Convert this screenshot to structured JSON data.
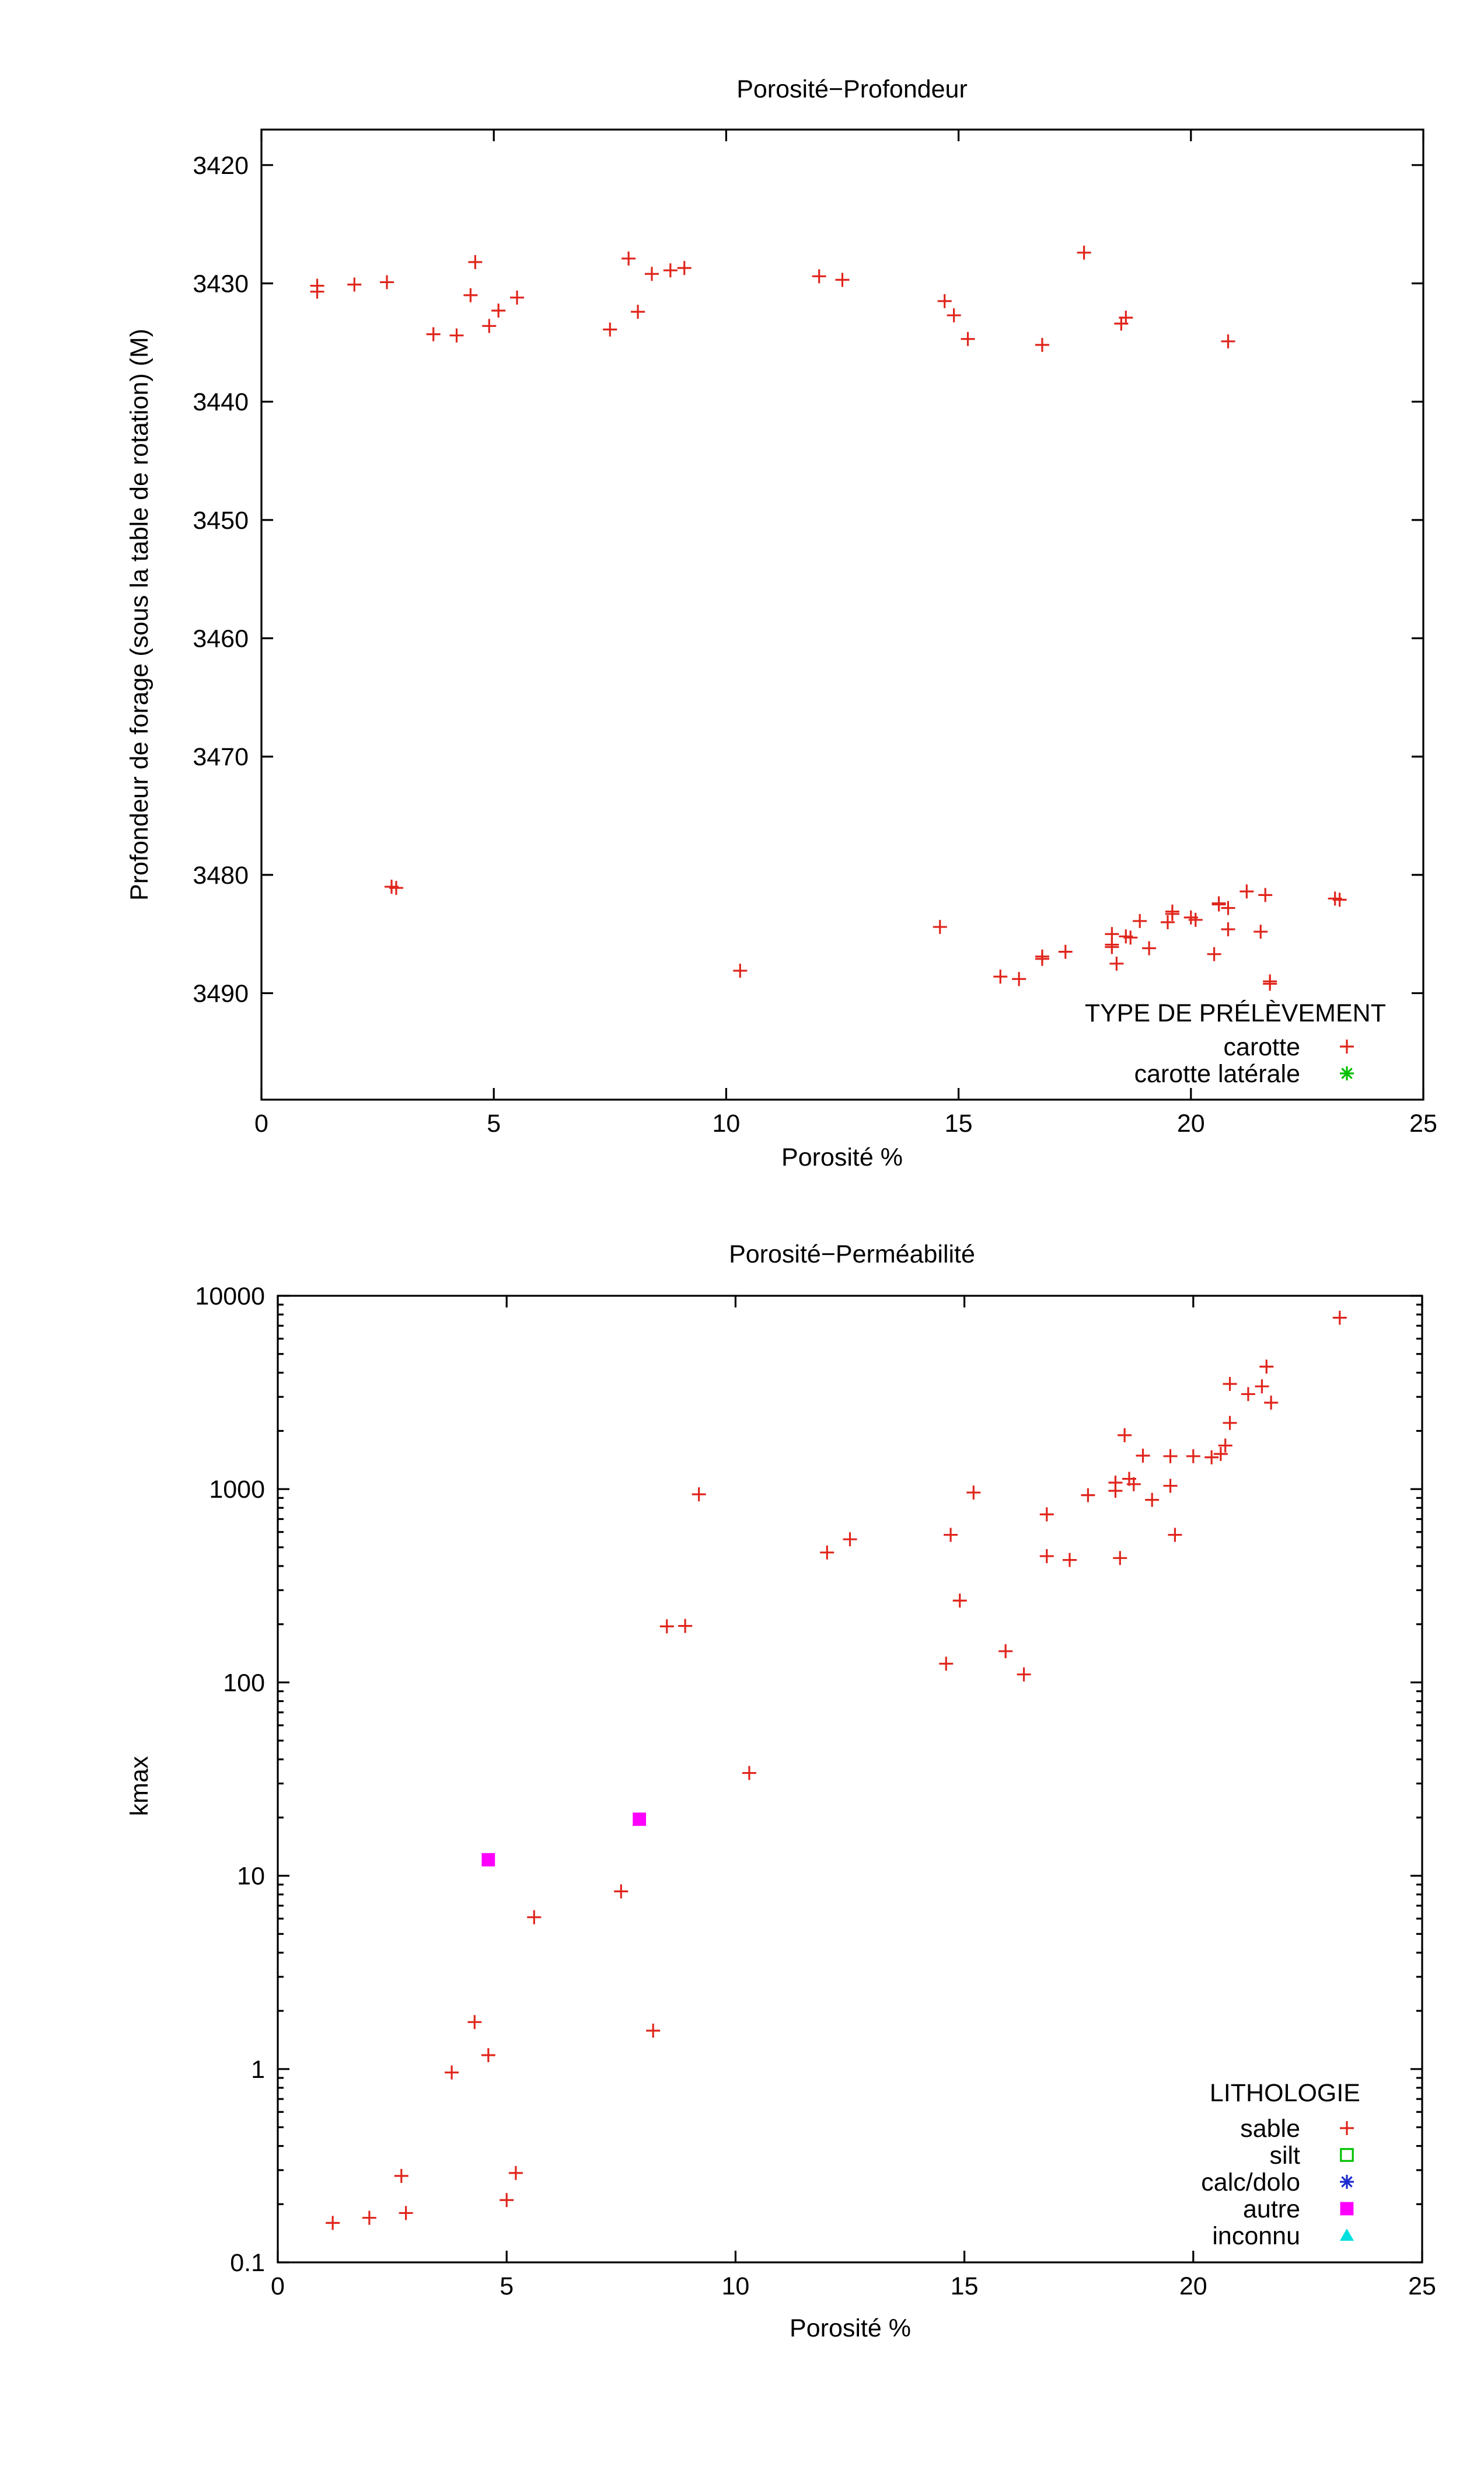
{
  "chart_data": [
    {
      "type": "scatter",
      "title": "Porosité−Profondeur",
      "xlabel": "Porosité %",
      "ylabel": "Profondeur de forage (sous la table de rotation) (M)",
      "xlim": [
        0,
        25
      ],
      "ylim": [
        3499,
        3417
      ],
      "y_reversed": true,
      "x_ticks": [
        "0",
        "5",
        "10",
        "15",
        "20",
        "25"
      ],
      "y_ticks": [
        "3420",
        "3430",
        "3440",
        "3450",
        "3460",
        "3470",
        "3480",
        "3490"
      ],
      "grid": false,
      "legend_position": "bottom-right",
      "legend_title": "TYPE DE PRÉLÈVEMENT",
      "series": [
        {
          "name": "carotte",
          "marker": "plus",
          "color": "#e0251b",
          "points": [
            [
              1.2,
              3430.2
            ],
            [
              1.2,
              3430.7
            ],
            [
              2.0,
              3430.1
            ],
            [
              2.7,
              3429.9
            ],
            [
              3.7,
              3434.3
            ],
            [
              4.2,
              3434.4
            ],
            [
              4.5,
              3431.0
            ],
            [
              4.6,
              3428.2
            ],
            [
              4.9,
              3433.6
            ],
            [
              5.1,
              3432.3
            ],
            [
              5.5,
              3431.2
            ],
            [
              7.5,
              3433.9
            ],
            [
              7.9,
              3427.9
            ],
            [
              8.1,
              3432.4
            ],
            [
              8.4,
              3429.2
            ],
            [
              8.8,
              3428.9
            ],
            [
              9.1,
              3428.7
            ],
            [
              12.0,
              3429.4
            ],
            [
              12.5,
              3429.7
            ],
            [
              14.7,
              3431.5
            ],
            [
              14.9,
              3432.7
            ],
            [
              15.2,
              3434.7
            ],
            [
              16.8,
              3435.2
            ],
            [
              17.7,
              3427.4
            ],
            [
              18.5,
              3433.4
            ],
            [
              18.6,
              3432.9
            ],
            [
              20.8,
              3434.9
            ],
            [
              2.8,
              3481.0
            ],
            [
              2.9,
              3481.1
            ],
            [
              10.3,
              3488.1
            ],
            [
              14.6,
              3484.4
            ],
            [
              15.9,
              3488.6
            ],
            [
              16.3,
              3488.8
            ],
            [
              16.8,
              3487.1
            ],
            [
              16.8,
              3486.9
            ],
            [
              17.3,
              3486.5
            ],
            [
              18.3,
              3485.0
            ],
            [
              18.3,
              3485.9
            ],
            [
              18.3,
              3486.1
            ],
            [
              18.4,
              3487.5
            ],
            [
              18.6,
              3485.2
            ],
            [
              18.7,
              3485.3
            ],
            [
              18.9,
              3483.9
            ],
            [
              19.1,
              3486.2
            ],
            [
              19.5,
              3484.0
            ],
            [
              19.6,
              3483.3
            ],
            [
              19.6,
              3483.1
            ],
            [
              20.0,
              3483.6
            ],
            [
              20.1,
              3483.8
            ],
            [
              20.5,
              3486.7
            ],
            [
              20.6,
              3482.4
            ],
            [
              20.6,
              3482.5
            ],
            [
              20.8,
              3482.8
            ],
            [
              20.8,
              3484.6
            ],
            [
              21.2,
              3481.4
            ],
            [
              21.5,
              3484.8
            ],
            [
              21.6,
              3481.7
            ],
            [
              21.7,
              3489.0
            ],
            [
              21.7,
              3489.2
            ],
            [
              23.1,
              3482.0
            ],
            [
              23.2,
              3482.1
            ]
          ]
        },
        {
          "name": "carotte latérale",
          "marker": "star",
          "color": "#00c000",
          "points": []
        }
      ]
    },
    {
      "type": "scatter",
      "title": "Porosité−Perméabilité",
      "xlabel": "Porosité %",
      "ylabel": "kmax",
      "xlim": [
        0,
        25
      ],
      "ylim": [
        0.1,
        10000
      ],
      "y_scale": "log",
      "x_ticks": [
        "0",
        "5",
        "10",
        "15",
        "20",
        "25"
      ],
      "y_ticks": [
        "0.1",
        "1",
        "10",
        "100",
        "1000",
        "10000"
      ],
      "grid": false,
      "legend_position": "bottom-right",
      "legend_title": "LITHOLOGIE",
      "series": [
        {
          "name": "sable",
          "marker": "plus",
          "color": "#e0251b",
          "points": [
            [
              1.2,
              0.16
            ],
            [
              2.0,
              0.17
            ],
            [
              2.7,
              0.28
            ],
            [
              2.8,
              0.18
            ],
            [
              3.8,
              0.96
            ],
            [
              4.3,
              1.75
            ],
            [
              4.6,
              1.18
            ],
            [
              5.0,
              0.21
            ],
            [
              5.2,
              0.29
            ],
            [
              5.6,
              6.1
            ],
            [
              7.5,
              8.3
            ],
            [
              8.2,
              1.58
            ],
            [
              8.5,
              195
            ],
            [
              8.9,
              196
            ],
            [
              9.2,
              940
            ],
            [
              10.3,
              34
            ],
            [
              12.0,
              470
            ],
            [
              12.5,
              550
            ],
            [
              14.6,
              125
            ],
            [
              14.7,
              580
            ],
            [
              14.9,
              265
            ],
            [
              15.2,
              960
            ],
            [
              15.9,
              145
            ],
            [
              16.3,
              110
            ],
            [
              16.8,
              450
            ],
            [
              16.8,
              740
            ],
            [
              17.3,
              430
            ],
            [
              17.7,
              930
            ],
            [
              18.3,
              980
            ],
            [
              18.3,
              1080
            ],
            [
              18.4,
              440
            ],
            [
              18.5,
              1900
            ],
            [
              18.6,
              1130
            ],
            [
              18.7,
              1060
            ],
            [
              18.9,
              1490
            ],
            [
              19.1,
              880
            ],
            [
              19.5,
              1480
            ],
            [
              19.5,
              1040
            ],
            [
              19.6,
              580
            ],
            [
              20.0,
              1480
            ],
            [
              20.4,
              1460
            ],
            [
              20.6,
              1520
            ],
            [
              20.7,
              1680
            ],
            [
              20.8,
              2200
            ],
            [
              20.8,
              3500
            ],
            [
              21.2,
              3100
            ],
            [
              21.5,
              3400
            ],
            [
              21.6,
              4300
            ],
            [
              21.7,
              2800
            ],
            [
              23.2,
              7700
            ]
          ]
        },
        {
          "name": "silt",
          "marker": "open-square",
          "color": "#00c000",
          "points": []
        },
        {
          "name": "calc/dolo",
          "marker": "star",
          "color": "#1a2bd0",
          "points": []
        },
        {
          "name": "autre",
          "marker": "filled-square",
          "color": "#ff00ff",
          "points": [
            [
              4.6,
              12.1
            ],
            [
              7.9,
              19.6
            ]
          ]
        },
        {
          "name": "inconnu",
          "marker": "filled-triangle",
          "color": "#00e0e0",
          "points": []
        }
      ]
    }
  ]
}
